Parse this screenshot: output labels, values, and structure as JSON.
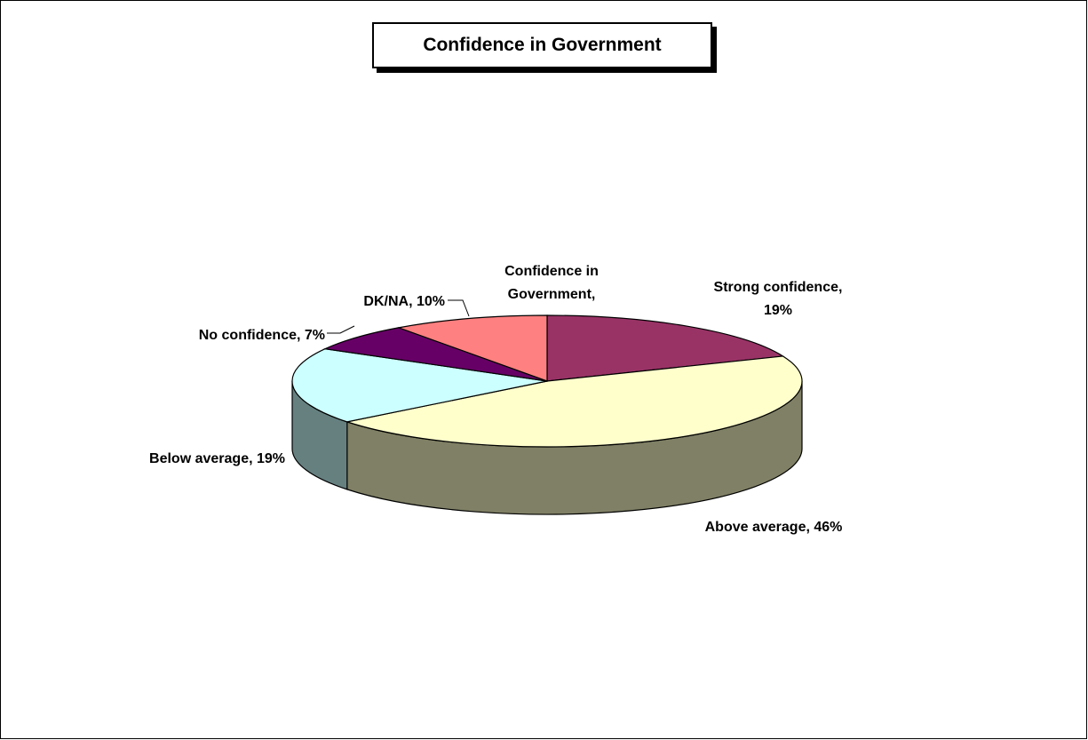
{
  "chart_data": {
    "type": "pie",
    "title": "Confidence in Government",
    "slices": [
      {
        "label": "Strong confidence",
        "value": 19,
        "pct_text": "19%",
        "color": "#993366",
        "side_color": "#6b2447"
      },
      {
        "label": "Above average",
        "value": 46,
        "pct_text": "46%",
        "color": "#ffffcc",
        "side_color": "#808066"
      },
      {
        "label": "Below average",
        "value": 19,
        "pct_text": "19%",
        "color": "#ccffff",
        "side_color": "#668080"
      },
      {
        "label": "No confidence",
        "value": 7,
        "pct_text": "7%",
        "color": "#660066",
        "side_color": "#330033"
      },
      {
        "label": "DK/NA",
        "value": 10,
        "pct_text": "10%",
        "color": "#ff8080",
        "side_color": "#804040"
      }
    ],
    "extra_label": "Confidence in Government,",
    "legend": "none"
  }
}
